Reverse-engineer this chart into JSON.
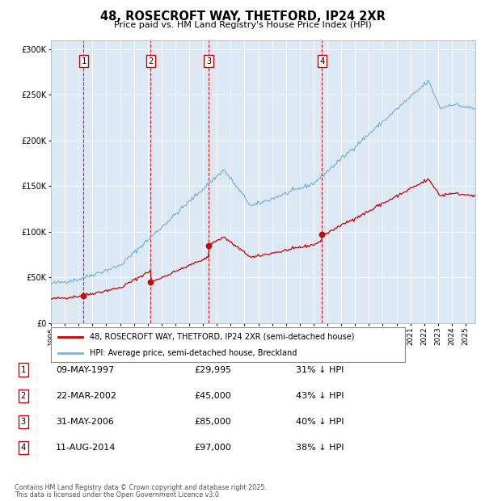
{
  "title1": "48, ROSECROFT WAY, THETFORD, IP24 2XR",
  "title2": "Price paid vs. HM Land Registry's House Price Index (HPI)",
  "bg_color": "#dce9f5",
  "red_line_color": "#cc0000",
  "blue_line_color": "#7ab3d9",
  "transactions": [
    {
      "num": 1,
      "date_str": "09-MAY-1997",
      "price": 29995,
      "year": 1997.36,
      "pct": "31% ↓ HPI"
    },
    {
      "num": 2,
      "date_str": "22-MAR-2002",
      "price": 45000,
      "year": 2002.22,
      "pct": "43% ↓ HPI"
    },
    {
      "num": 3,
      "date_str": "31-MAY-2006",
      "price": 85000,
      "year": 2006.41,
      "pct": "40% ↓ HPI"
    },
    {
      "num": 4,
      "date_str": "11-AUG-2014",
      "price": 97000,
      "year": 2014.61,
      "pct": "38% ↓ HPI"
    }
  ],
  "legend_red": "48, ROSECROFT WAY, THETFORD, IP24 2XR (semi-detached house)",
  "legend_blue": "HPI: Average price, semi-detached house, Breckland",
  "footer1": "Contains HM Land Registry data © Crown copyright and database right 2025.",
  "footer2": "This data is licensed under the Open Government Licence v3.0.",
  "table_rows": [
    [
      "1",
      "09-MAY-1997",
      "£29,995",
      "31% ↓ HPI"
    ],
    [
      "2",
      "22-MAR-2002",
      "£45,000",
      "43% ↓ HPI"
    ],
    [
      "3",
      "31-MAY-2006",
      "£85,000",
      "40% ↓ HPI"
    ],
    [
      "4",
      "11-AUG-2014",
      "£97,000",
      "38% ↓ HPI"
    ]
  ],
  "ylim": [
    0,
    310000
  ],
  "xlim_start": 1995.0,
  "xlim_end": 2025.7,
  "yticks": [
    0,
    50000,
    100000,
    150000,
    200000,
    250000,
    300000
  ],
  "xtick_start": 1995,
  "xtick_end": 2026
}
